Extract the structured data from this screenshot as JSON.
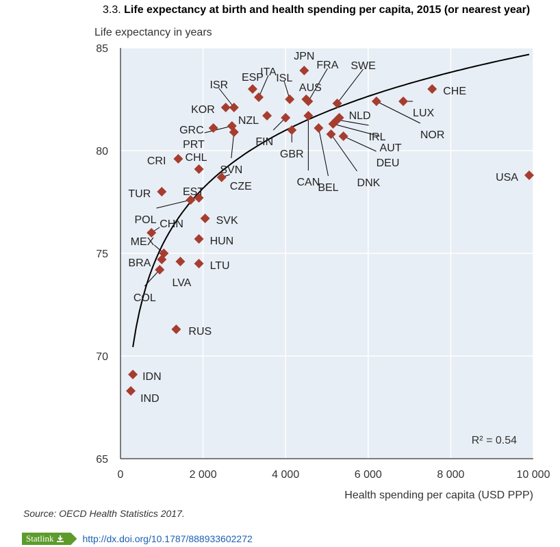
{
  "figure": {
    "number": "3.3.",
    "title": "Life expectancy at birth and health spending per capita, 2015 (or nearest year)",
    "source": "Source: OECD Health Statistics 2017.",
    "statlink_label": "Statlink",
    "statlink_url": "http://dx.doi.org/10.1787/888933602272"
  },
  "colors": {
    "marker": "#a63d2f",
    "curve": "#000000",
    "plot_background": "#e8eef5",
    "grid": "#ffffff",
    "statlink": "#5d9c2c",
    "link": "#1a5fb4"
  },
  "icons": {
    "statlink": "download-icon"
  },
  "chart_data": {
    "type": "scatter",
    "title": "Life expectancy at birth and health spending per capita, 2015 (or nearest year)",
    "xlabel": "Health spending per capita (USD PPP)",
    "ylabel": "Life expectancy in years",
    "xlim": [
      0,
      10000
    ],
    "ylim": [
      65,
      85
    ],
    "xticks": [
      0,
      2000,
      4000,
      6000,
      8000,
      10000
    ],
    "xtick_labels": [
      "0",
      "2 000",
      "4 000",
      "6 000",
      "8 000",
      "10 000"
    ],
    "yticks": [
      65,
      70,
      75,
      80,
      85
    ],
    "ytick_labels": [
      "65",
      "70",
      "75",
      "80",
      "85"
    ],
    "grid": true,
    "r2_label": "R² = 0.54",
    "trendline": {
      "type": "logarithmic",
      "x_range": [
        300,
        9900
      ]
    },
    "points": [
      {
        "label": "JPN",
        "x": 4450,
        "y": 83.9
      },
      {
        "label": "CHE",
        "x": 7550,
        "y": 83.0
      },
      {
        "label": "ESP",
        "x": 3200,
        "y": 83.0
      },
      {
        "label": "ITA",
        "x": 3350,
        "y": 82.6
      },
      {
        "label": "ISL",
        "x": 4100,
        "y": 82.5
      },
      {
        "label": "FRA",
        "x": 4550,
        "y": 82.4
      },
      {
        "label": "AUS",
        "x": 4500,
        "y": 82.5
      },
      {
        "label": "SWE",
        "x": 5250,
        "y": 82.3
      },
      {
        "label": "LUX",
        "x": 6850,
        "y": 82.4
      },
      {
        "label": "NOR",
        "x": 6200,
        "y": 82.4
      },
      {
        "label": "ISR",
        "x": 2750,
        "y": 82.1
      },
      {
        "label": "KOR",
        "x": 2550,
        "y": 82.1
      },
      {
        "label": "NLD",
        "x": 5300,
        "y": 81.6
      },
      {
        "label": "NZL",
        "x": 3550,
        "y": 81.7
      },
      {
        "label": "IRL",
        "x": 5250,
        "y": 81.5
      },
      {
        "label": "AUT",
        "x": 5150,
        "y": 81.3
      },
      {
        "label": "FIN",
        "x": 4000,
        "y": 81.6
      },
      {
        "label": "CAN",
        "x": 4550,
        "y": 81.7
      },
      {
        "label": "GBR",
        "x": 4150,
        "y": 81.0
      },
      {
        "label": "BEL",
        "x": 4800,
        "y": 81.1
      },
      {
        "label": "DEU",
        "x": 5400,
        "y": 80.7
      },
      {
        "label": "DNK",
        "x": 5100,
        "y": 80.8
      },
      {
        "label": "GRC",
        "x": 2250,
        "y": 81.1
      },
      {
        "label": "PRT",
        "x": 2700,
        "y": 81.2
      },
      {
        "label": "SVN",
        "x": 2750,
        "y": 80.9
      },
      {
        "label": "CHL",
        "x": 1900,
        "y": 79.1
      },
      {
        "label": "CRI",
        "x": 1400,
        "y": 79.6
      },
      {
        "label": "USA",
        "x": 9900,
        "y": 78.8
      },
      {
        "label": "CZE",
        "x": 2450,
        "y": 78.7
      },
      {
        "label": "TUR",
        "x": 1000,
        "y": 78.0
      },
      {
        "label": "EST",
        "x": 1900,
        "y": 77.7
      },
      {
        "label": "POL",
        "x": 1700,
        "y": 77.6
      },
      {
        "label": "SVK",
        "x": 2050,
        "y": 76.7
      },
      {
        "label": "CHN",
        "x": 750,
        "y": 76.0
      },
      {
        "label": "HUN",
        "x": 1900,
        "y": 75.7
      },
      {
        "label": "MEX",
        "x": 1050,
        "y": 75.0
      },
      {
        "label": "BRA",
        "x": 1000,
        "y": 74.7
      },
      {
        "label": "LVA",
        "x": 1450,
        "y": 74.6
      },
      {
        "label": "LTU",
        "x": 1900,
        "y": 74.5
      },
      {
        "label": "COL",
        "x": 950,
        "y": 74.2
      },
      {
        "label": "RUS",
        "x": 1350,
        "y": 71.3
      },
      {
        "label": "IDN",
        "x": 300,
        "y": 69.1
      },
      {
        "label": "IND",
        "x": 250,
        "y": 68.3
      }
    ]
  }
}
